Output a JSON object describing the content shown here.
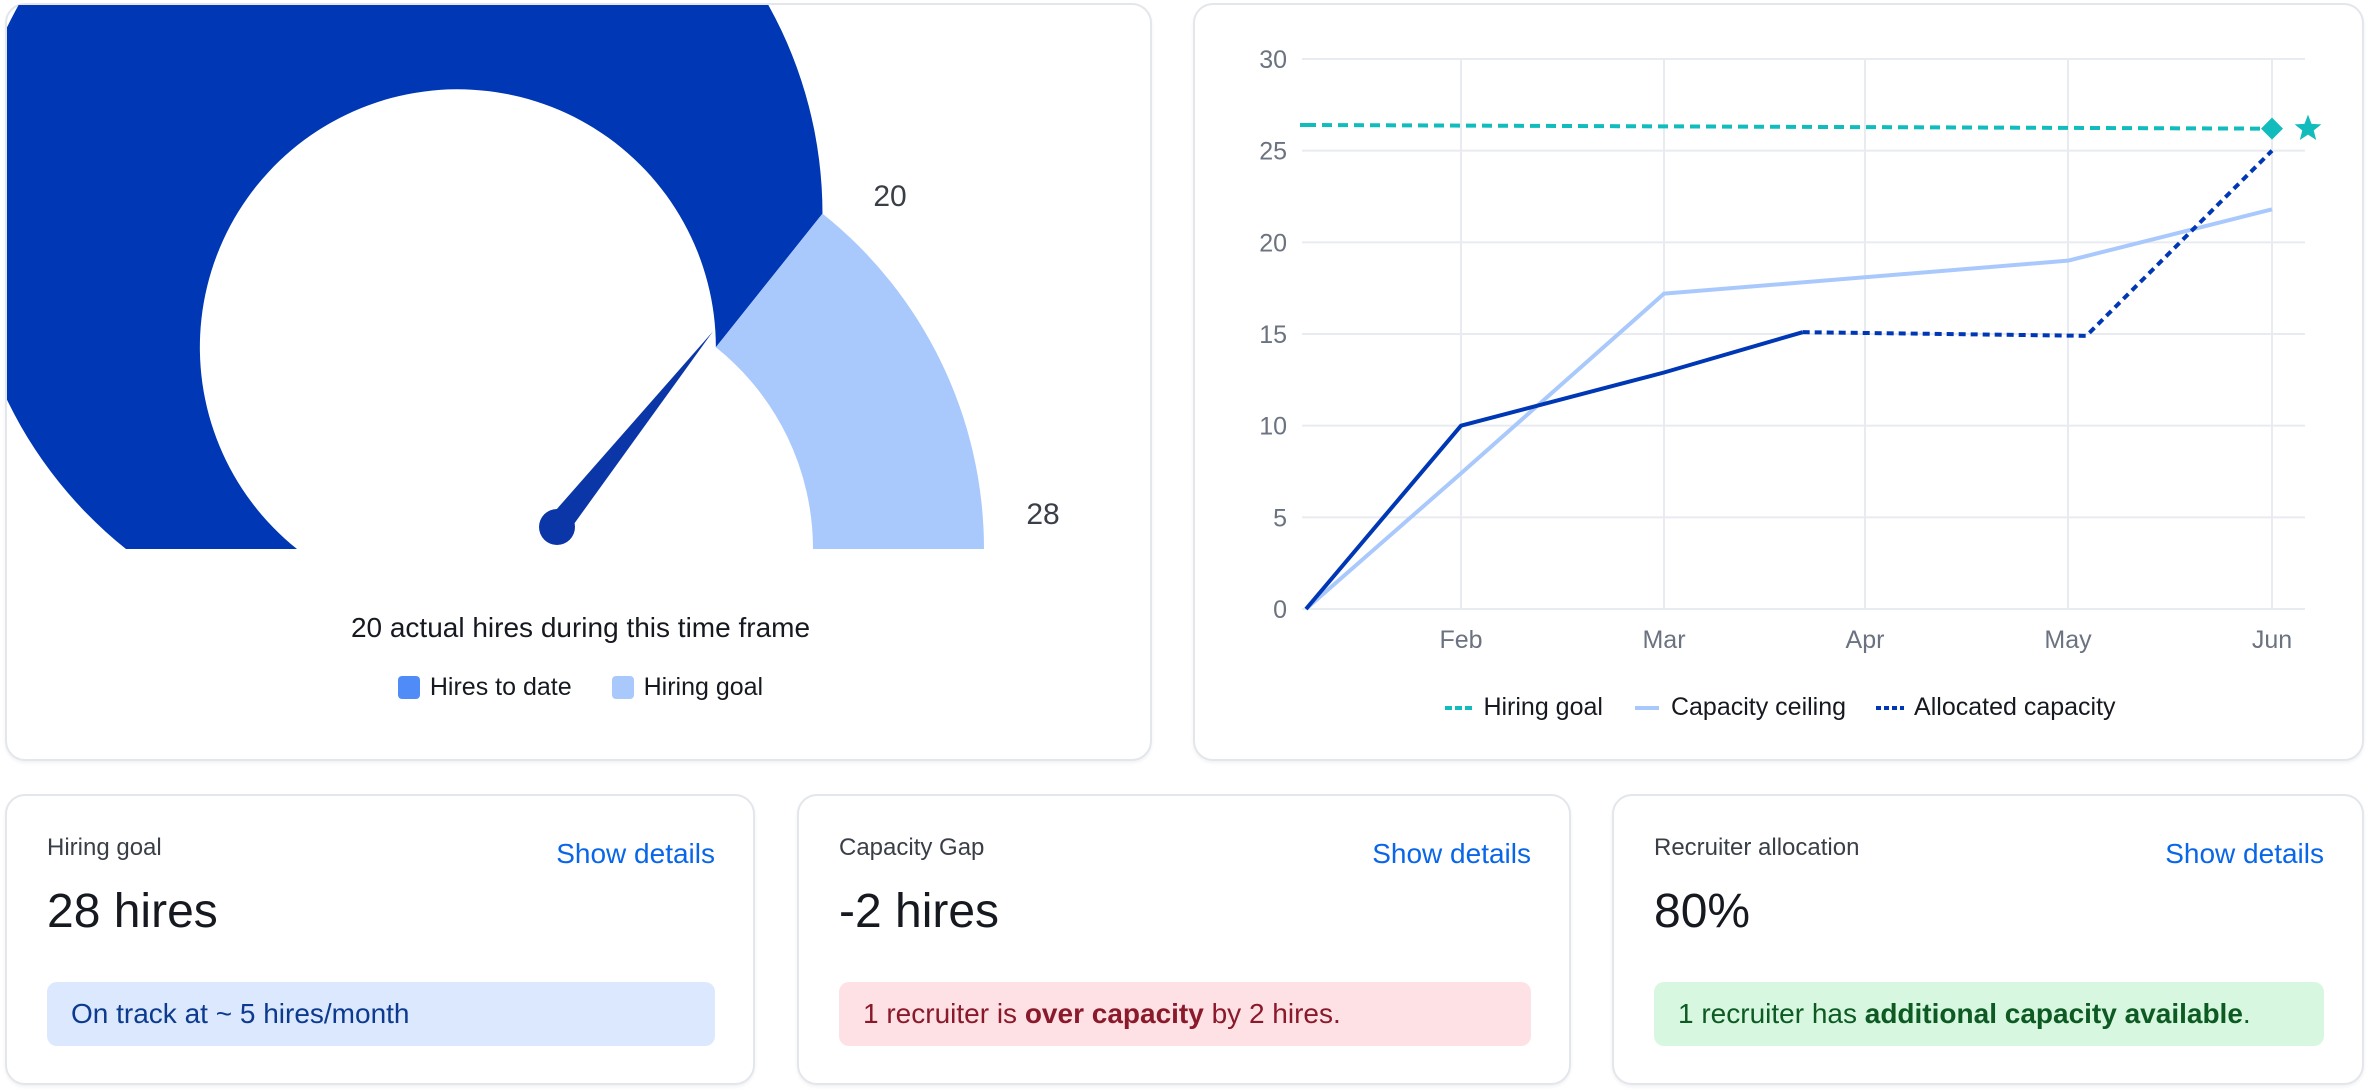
{
  "gauge_card": {
    "caption": "20 actual hires during this time frame",
    "value_label": "20",
    "max_label": "28",
    "legend": [
      {
        "label": "Hires to date",
        "color": "#4f8cf7"
      },
      {
        "label": "Hiring goal",
        "color": "#a9c9fc"
      }
    ],
    "colors": {
      "filled": "#0037b4",
      "remaining": "#a9c9fc",
      "needle": "#0b36a8",
      "label": "#3a3f47"
    }
  },
  "line_card": {
    "legend": [
      {
        "label": "Hiring goal",
        "color": "#12bcbc",
        "style": "dashed"
      },
      {
        "label": "Capacity ceiling",
        "color": "#a9c9fc",
        "style": "solid"
      },
      {
        "label": "Allocated capacity",
        "color": "#0037b4",
        "style": "dotted"
      }
    ]
  },
  "chart_data": [
    {
      "type": "gauge",
      "title": "20 actual hires during this time frame",
      "value": 20,
      "max": 28,
      "min": 0,
      "labels": [
        "20",
        "28"
      ],
      "legend": [
        "Hires to date",
        "Hiring goal"
      ]
    },
    {
      "type": "line",
      "title": "",
      "xlabel": "",
      "ylabel": "",
      "categories": [
        "",
        "Feb",
        "Mar",
        "Apr",
        "May",
        "Jun"
      ],
      "yticks": [
        0,
        5,
        10,
        15,
        20,
        25,
        30
      ],
      "ylim": [
        0,
        30
      ],
      "grid": true,
      "legend_position": "bottom",
      "series": [
        {
          "name": "Hiring goal",
          "style": "dashed",
          "color": "#12bcbc",
          "points": [
            [
              0,
              26.4
            ],
            [
              5,
              26.2
            ]
          ],
          "end_markers": [
            "diamond",
            "star"
          ]
        },
        {
          "name": "Capacity ceiling",
          "style": "solid",
          "color": "#a9c9fc",
          "points": [
            [
              0,
              0
            ],
            [
              1,
              7.4
            ],
            [
              2,
              17.2
            ],
            [
              4,
              19.0
            ],
            [
              5,
              21.8
            ]
          ]
        },
        {
          "name": "Allocated capacity (actual)",
          "style": "solid",
          "color": "#0037b4",
          "points": [
            [
              0,
              0
            ],
            [
              1,
              10
            ],
            [
              2,
              12.9
            ],
            [
              2.69,
              15.1
            ]
          ]
        },
        {
          "name": "Allocated capacity",
          "style": "dotted",
          "color": "#0037b4",
          "points": [
            [
              2.69,
              15.1
            ],
            [
              4.09,
              14.9
            ],
            [
              5,
              25
            ]
          ]
        }
      ]
    }
  ],
  "kpis": [
    {
      "title": "Hiring goal",
      "link": "Show details",
      "value": "28 hires",
      "banner": {
        "variant": "info",
        "pre": "On track at ~ 5 hires/month",
        "em": "",
        "post": ""
      }
    },
    {
      "title": "Capacity Gap",
      "link": "Show details",
      "value": "-2 hires",
      "banner": {
        "variant": "danger",
        "pre": "1 recruiter is ",
        "em": "over capacity",
        "post": " by 2 hires."
      }
    },
    {
      "title": "Recruiter allocation",
      "link": "Show details",
      "value": "80%",
      "banner": {
        "variant": "success",
        "pre": "1 recruiter has ",
        "em": "additional capacity available",
        "post": "."
      }
    }
  ]
}
